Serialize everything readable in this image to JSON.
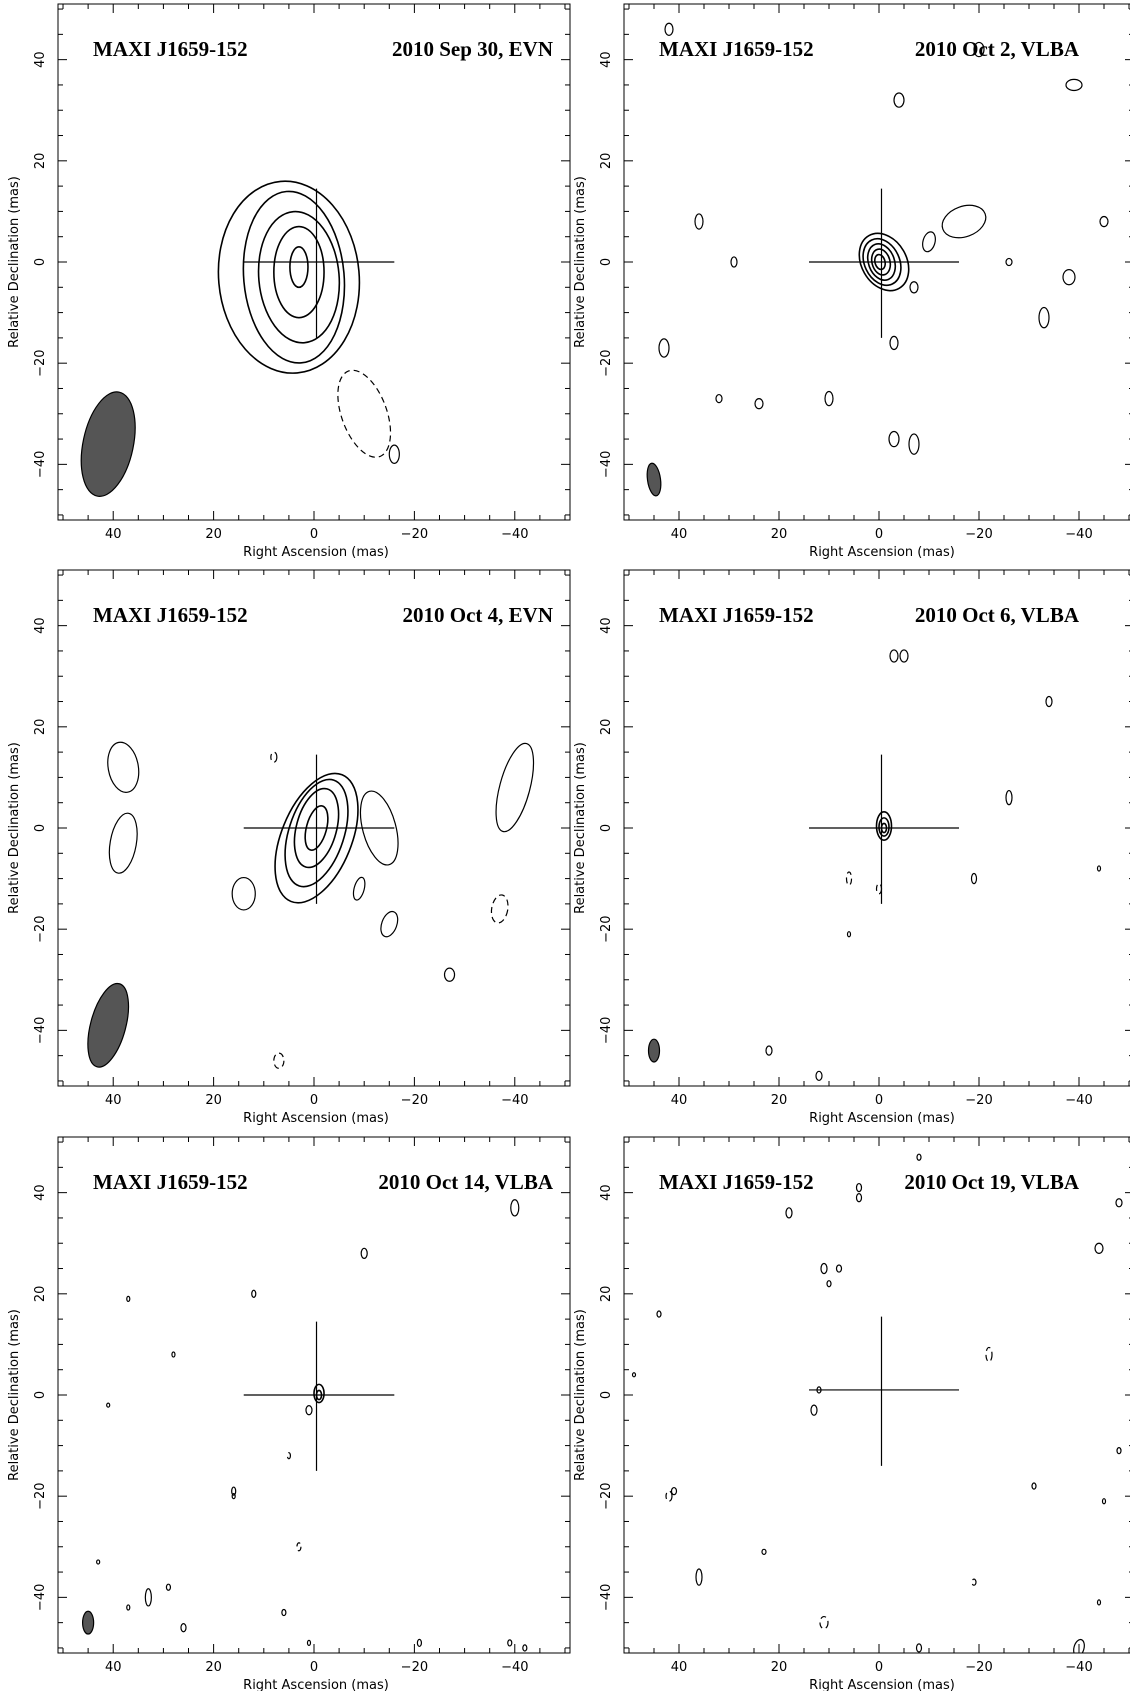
{
  "chart_data": [
    {
      "type": "contour",
      "source": "MAXI J1659-152",
      "epoch": "2010 Sep 30, EVN",
      "xlabel": "Right Ascension  (mas)",
      "ylabel": "Relative Declination  (mas)",
      "xlim": [
        51,
        -51
      ],
      "ylim": [
        -51,
        51
      ],
      "xticks": [
        40,
        20,
        0,
        -20,
        -40
      ],
      "yticks": [
        40,
        20,
        0,
        -20,
        -40
      ],
      "reference_position": {
        "ra": 0,
        "dec": 0
      },
      "beam": {
        "ra": 41,
        "dec": -36,
        "major": 21,
        "minor": 10,
        "pa_deg": 12
      },
      "peak": {
        "ra": 3,
        "dec": 0
      },
      "contour_levels": 6,
      "negative_contours": 3
    },
    {
      "type": "contour",
      "source": "MAXI J1659-152",
      "epoch": "2010 Oct 2, VLBA",
      "xlabel": "Right Ascension  (mas)",
      "ylabel": "Relative Declination  (mas)",
      "xlim": [
        51,
        -51
      ],
      "ylim": [
        -51,
        51
      ],
      "xticks": [
        40,
        20,
        0,
        -20,
        -40
      ],
      "yticks": [
        40,
        20,
        0,
        -20,
        -40
      ],
      "reference_position": {
        "ra": 0,
        "dec": 0
      },
      "beam": {
        "ra": 45,
        "dec": -43,
        "major": 6.5,
        "minor": 2.6,
        "pa_deg": -8
      },
      "peak": {
        "ra": 0,
        "dec": 0
      },
      "contour_levels": 5,
      "secondary_component": {
        "ra": -9,
        "dec": 5
      }
    },
    {
      "type": "contour",
      "source": "MAXI J1659-152",
      "epoch": "2010 Oct 4, EVN",
      "xlabel": "Right Ascension  (mas)",
      "ylabel": "Relative Declination  (mas)",
      "xlim": [
        51,
        -51
      ],
      "ylim": [
        -51,
        51
      ],
      "xticks": [
        40,
        20,
        0,
        -20,
        -40
      ],
      "yticks": [
        40,
        20,
        0,
        -20,
        -40
      ],
      "reference_position": {
        "ra": 0,
        "dec": 0
      },
      "beam": {
        "ra": 41,
        "dec": -39,
        "major": 17,
        "minor": 7,
        "pa_deg": 15
      },
      "peak": {
        "ra": 0,
        "dec": 0
      },
      "contour_levels": 4
    },
    {
      "type": "contour",
      "source": "MAXI J1659-152",
      "epoch": "2010 Oct 6, VLBA",
      "xlabel": "Right Ascension  (mas)",
      "ylabel": "Relative Declination  (mas)",
      "xlim": [
        51,
        -51
      ],
      "ylim": [
        -51,
        51
      ],
      "xticks": [
        40,
        20,
        0,
        -20,
        -40
      ],
      "yticks": [
        40,
        20,
        0,
        -20,
        -40
      ],
      "reference_position": {
        "ra": 0,
        "dec": 0
      },
      "beam": {
        "ra": 45,
        "dec": -44,
        "major": 4.5,
        "minor": 2.2,
        "pa_deg": 0
      },
      "peak": {
        "ra": -1,
        "dec": 0
      },
      "contour_levels": 3
    },
    {
      "type": "contour",
      "source": "MAXI J1659-152",
      "epoch": "2010 Oct 14, VLBA",
      "xlabel": "Right Ascension  (mas)",
      "ylabel": "Relative Declination  (mas)",
      "xlim": [
        51,
        -51
      ],
      "ylim": [
        -51,
        51
      ],
      "xticks": [
        40,
        20,
        0,
        -20,
        -40
      ],
      "yticks": [
        40,
        20,
        0,
        -20,
        -40
      ],
      "reference_position": {
        "ra": 0,
        "dec": 0
      },
      "beam": {
        "ra": 45,
        "dec": -45,
        "major": 4.5,
        "minor": 2.2,
        "pa_deg": 0
      },
      "peak": {
        "ra": -1,
        "dec": 0
      },
      "contour_levels": 2
    },
    {
      "type": "contour",
      "source": "MAXI J1659-152",
      "epoch": "2010 Oct 19, VLBA",
      "xlabel": "Right Ascension  (mas)",
      "ylabel": "Relative Declination  (mas)",
      "xlim": [
        51,
        -51
      ],
      "ylim": [
        -51,
        51
      ],
      "xticks": [
        40,
        20,
        0,
        -20,
        -40
      ],
      "yticks": [
        40,
        20,
        0,
        -20,
        -40
      ],
      "reference_position": {
        "ra": 0,
        "dec": 1
      },
      "contour_levels": 0
    }
  ]
}
